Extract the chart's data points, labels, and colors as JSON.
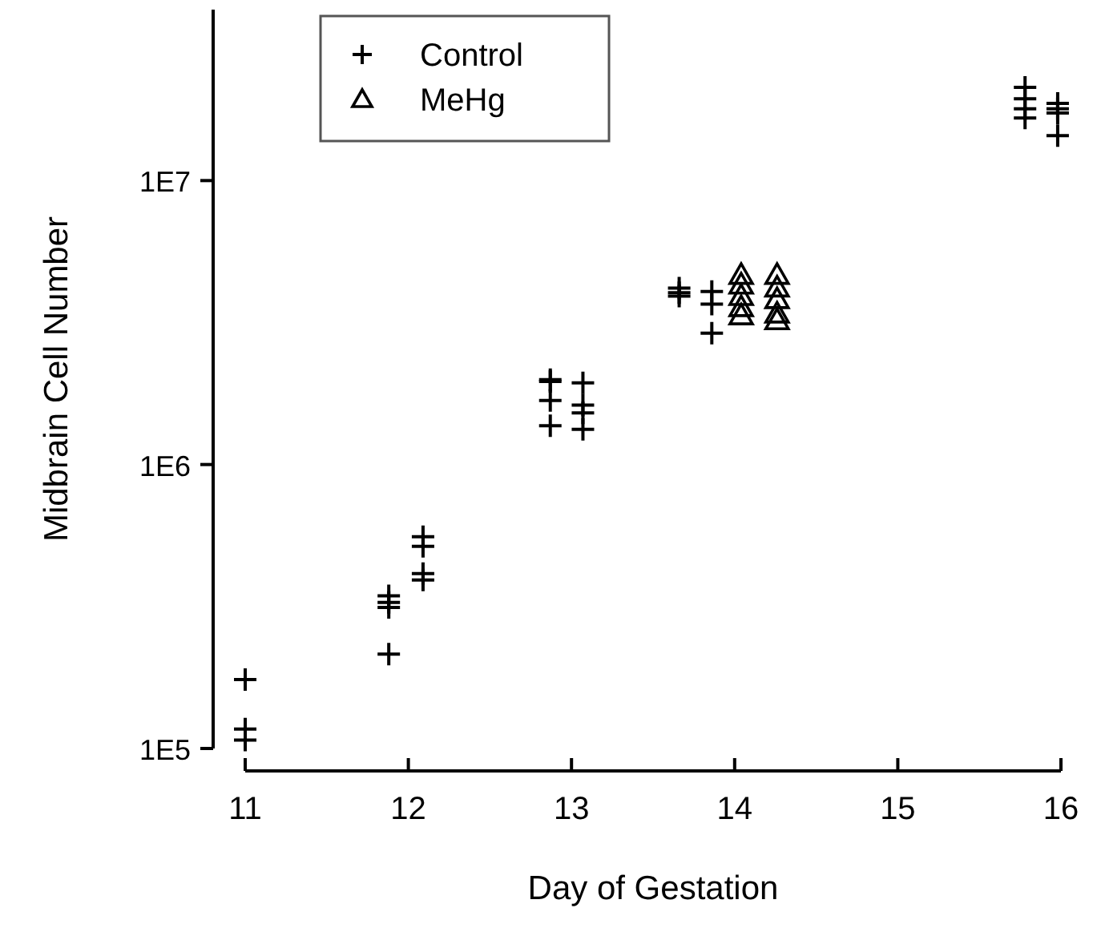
{
  "chart_data": {
    "type": "scatter",
    "xlabel": "Day of Gestation",
    "ylabel": "Midbrain Cell Number",
    "log": "y",
    "grid": false,
    "legend": "top left",
    "xlim": [
      11,
      16
    ],
    "xticks": [
      11,
      12,
      13,
      14,
      15,
      16
    ],
    "ylim": [
      100000,
      40000000
    ],
    "yticks": [
      {
        "value": 100000,
        "label": "1E5"
      },
      {
        "value": 1000000,
        "label": "1E6"
      },
      {
        "value": 10000000,
        "label": "1E7"
      }
    ],
    "series": [
      {
        "name": "Control",
        "color": "#000000",
        "marker": "cross",
        "x": [
          11,
          11,
          11,
          11.88,
          11.88,
          11.88,
          11.88,
          12.09,
          12.09,
          12.09,
          12.09,
          12.87,
          12.87,
          12.87,
          12.87,
          13.07,
          13.07,
          13.07,
          13.07,
          13.66,
          13.66,
          13.66,
          13.86,
          13.86,
          13.86,
          15.78,
          15.78,
          15.78,
          15.78,
          15.98,
          15.98,
          15.98,
          15.98
        ],
        "values": [
          175000,
          117000,
          107000,
          345000,
          327000,
          314000,
          215000,
          557000,
          515000,
          413000,
          392000,
          1990000,
          1960000,
          1680000,
          1370000,
          1940000,
          1620000,
          1520000,
          1330000,
          4180000,
          4030000,
          3920000,
          4070000,
          3670000,
          2900000,
          21300000,
          19400000,
          17900000,
          16600000,
          18700000,
          17900000,
          17300000,
          14400000
        ]
      },
      {
        "name": "MeHg",
        "color": "#000000",
        "marker": "triangle",
        "x": [
          14.04,
          14.04,
          14.04,
          14.04,
          14.04,
          14.26,
          14.26,
          14.26,
          14.26,
          14.26
        ],
        "values": [
          4650000,
          4300000,
          3920000,
          3580000,
          3350000,
          4650000,
          4200000,
          3820000,
          3400000,
          3220000
        ]
      }
    ]
  }
}
